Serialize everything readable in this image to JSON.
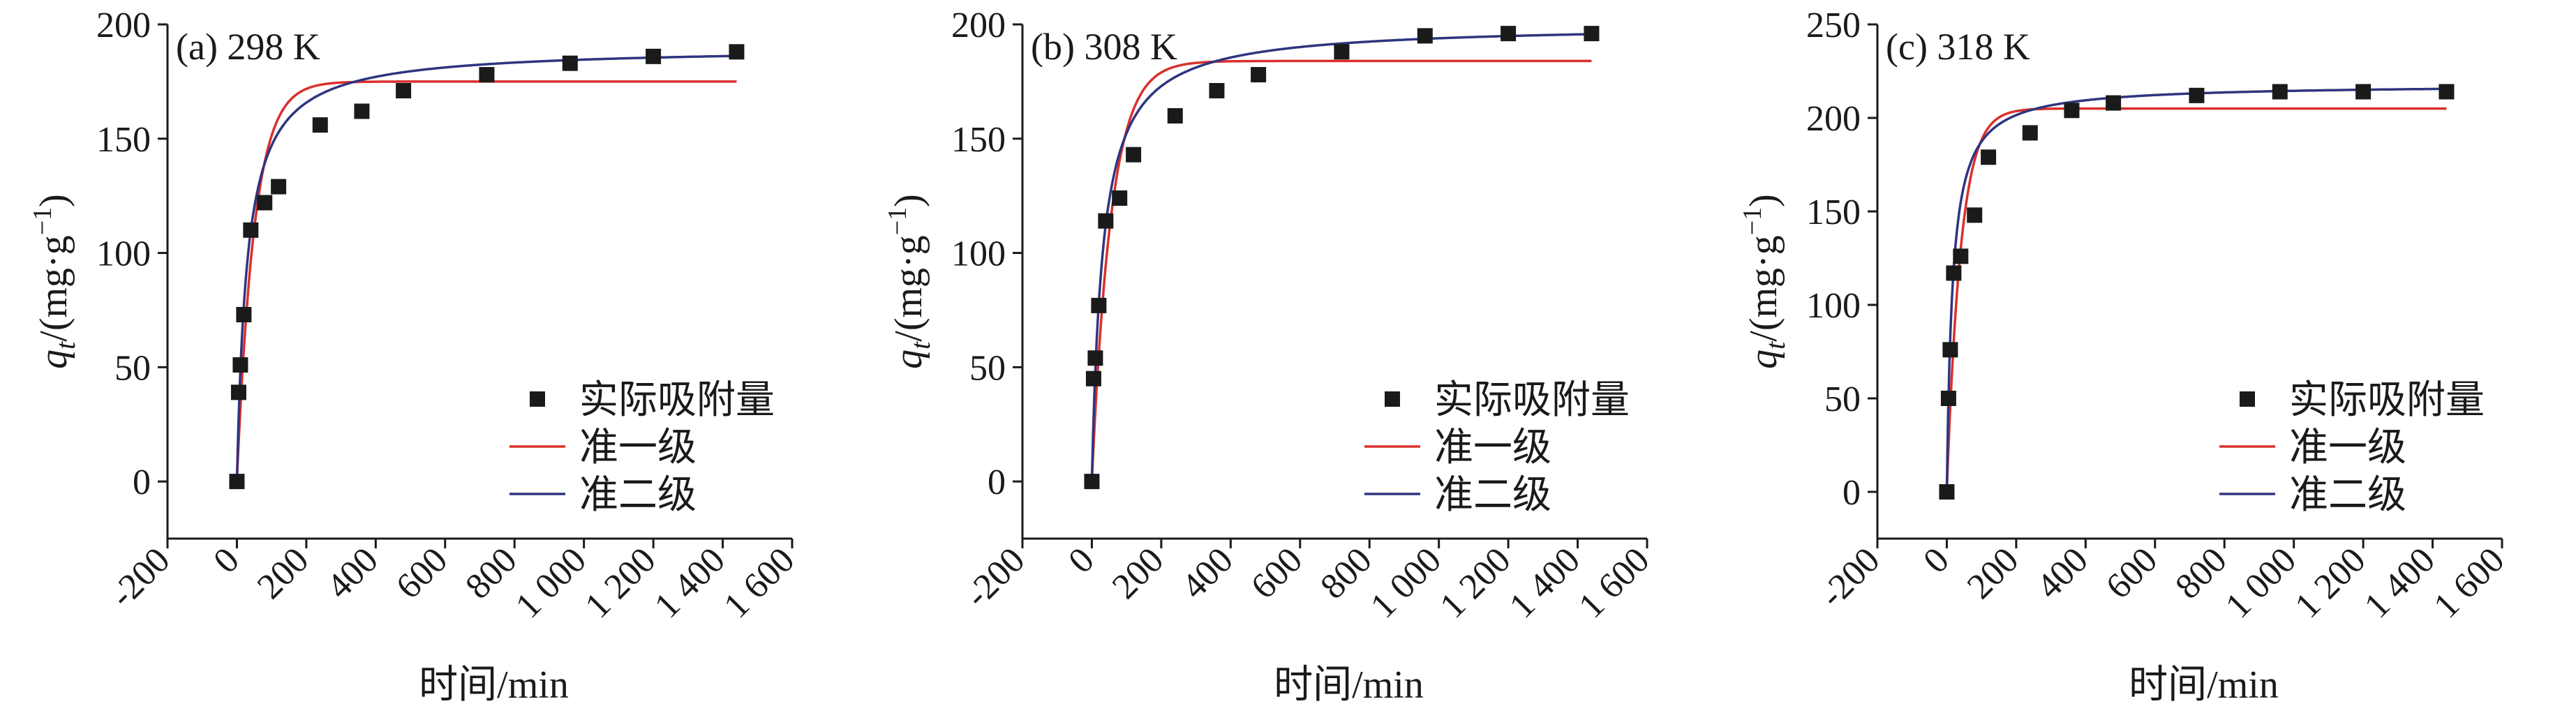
{
  "chart_data": [
    {
      "type": "scatter",
      "title": "(a)  298 K",
      "xlabel": "时间/min",
      "ylabel": "q_t/(mg·g^-1)",
      "xlim": [
        -200,
        1600
      ],
      "ylim": [
        -25,
        200
      ],
      "xticks": [
        -200,
        0,
        200,
        400,
        600,
        800,
        1000,
        1200,
        1400,
        1600
      ],
      "xtick_labels": [
        "-200",
        "0",
        "200",
        "400",
        "600",
        "800",
        "1 000",
        "1 200",
        "1 400",
        "1 600"
      ],
      "yticks": [
        0,
        50,
        100,
        150,
        200
      ],
      "ytick_labels": [
        "0",
        "50",
        "100",
        "150",
        "200"
      ],
      "legend_position": "lower-right",
      "series": [
        {
          "name": "实际吸附量",
          "kind": "markers",
          "color": "#1a1a1a",
          "x": [
            0,
            5,
            10,
            20,
            40,
            80,
            120,
            240,
            360,
            480,
            720,
            960,
            1200,
            1440
          ],
          "y": [
            0,
            39,
            51,
            73,
            110,
            122,
            129,
            156,
            162,
            171,
            178,
            183,
            186,
            188
          ]
        },
        {
          "name": "准一级",
          "kind": "line",
          "color": "#d9302c",
          "model": "pfo",
          "qe": 175,
          "k": 0.02,
          "xmax": 1440
        },
        {
          "name": "准二级",
          "kind": "line",
          "color": "#2e3580",
          "model": "pso",
          "qe": 190,
          "k": 0.00018,
          "xmax": 1440
        }
      ]
    },
    {
      "type": "scatter",
      "title": "(b)  308 K",
      "xlabel": "时间/min",
      "ylabel": "q_t/(mg·g^-1)",
      "xlim": [
        -200,
        1600
      ],
      "ylim": [
        -25,
        200
      ],
      "xticks": [
        -200,
        0,
        200,
        400,
        600,
        800,
        1000,
        1200,
        1400,
        1600
      ],
      "xtick_labels": [
        "-200",
        "0",
        "200",
        "400",
        "600",
        "800",
        "1 000",
        "1 200",
        "1 400",
        "1 600"
      ],
      "yticks": [
        0,
        50,
        100,
        150,
        200
      ],
      "ytick_labels": [
        "0",
        "50",
        "100",
        "150",
        "200"
      ],
      "legend_position": "lower-right",
      "series": [
        {
          "name": "实际吸附量",
          "kind": "markers",
          "color": "#1a1a1a",
          "x": [
            0,
            5,
            10,
            20,
            40,
            80,
            120,
            240,
            360,
            480,
            720,
            960,
            1200,
            1440
          ],
          "y": [
            0,
            45,
            54,
            77,
            114,
            124,
            143,
            160,
            171,
            178,
            188,
            195,
            196,
            196
          ]
        },
        {
          "name": "准一级",
          "kind": "line",
          "color": "#d9302c",
          "model": "pfo",
          "qe": 184,
          "k": 0.018,
          "xmax": 1440
        },
        {
          "name": "准二级",
          "kind": "line",
          "color": "#2e3580",
          "model": "pso",
          "qe": 200,
          "k": 0.00016,
          "xmax": 1440
        }
      ]
    },
    {
      "type": "scatter",
      "title": "(c)  318 K",
      "xlabel": "时间/min",
      "ylabel": "q_t/(mg·g^-1)",
      "xlim": [
        -200,
        1600
      ],
      "ylim": [
        -25,
        250
      ],
      "xticks": [
        -200,
        0,
        200,
        400,
        600,
        800,
        1000,
        1200,
        1400,
        1600
      ],
      "xtick_labels": [
        "-200",
        "0",
        "200",
        "400",
        "600",
        "800",
        "1 000",
        "1 200",
        "1 400",
        "1 600"
      ],
      "yticks": [
        0,
        50,
        100,
        150,
        200,
        250
      ],
      "ytick_labels": [
        "0",
        "50",
        "100",
        "150",
        "200",
        "250"
      ],
      "legend_position": "lower-right",
      "series": [
        {
          "name": "实际吸附量",
          "kind": "markers",
          "color": "#1a1a1a",
          "x": [
            0,
            5,
            10,
            20,
            40,
            80,
            120,
            240,
            360,
            480,
            720,
            960,
            1200,
            1440
          ],
          "y": [
            0,
            50,
            76,
            117,
            126,
            148,
            179,
            192,
            204,
            208,
            212,
            214,
            214,
            214
          ]
        },
        {
          "name": "准一级",
          "kind": "line",
          "color": "#d9302c",
          "model": "pfo",
          "qe": 205,
          "k": 0.025,
          "xmax": 1440
        },
        {
          "name": "准二级",
          "kind": "line",
          "color": "#2e3580",
          "model": "pso",
          "qe": 218,
          "k": 0.00028,
          "xmax": 1440
        }
      ]
    }
  ]
}
